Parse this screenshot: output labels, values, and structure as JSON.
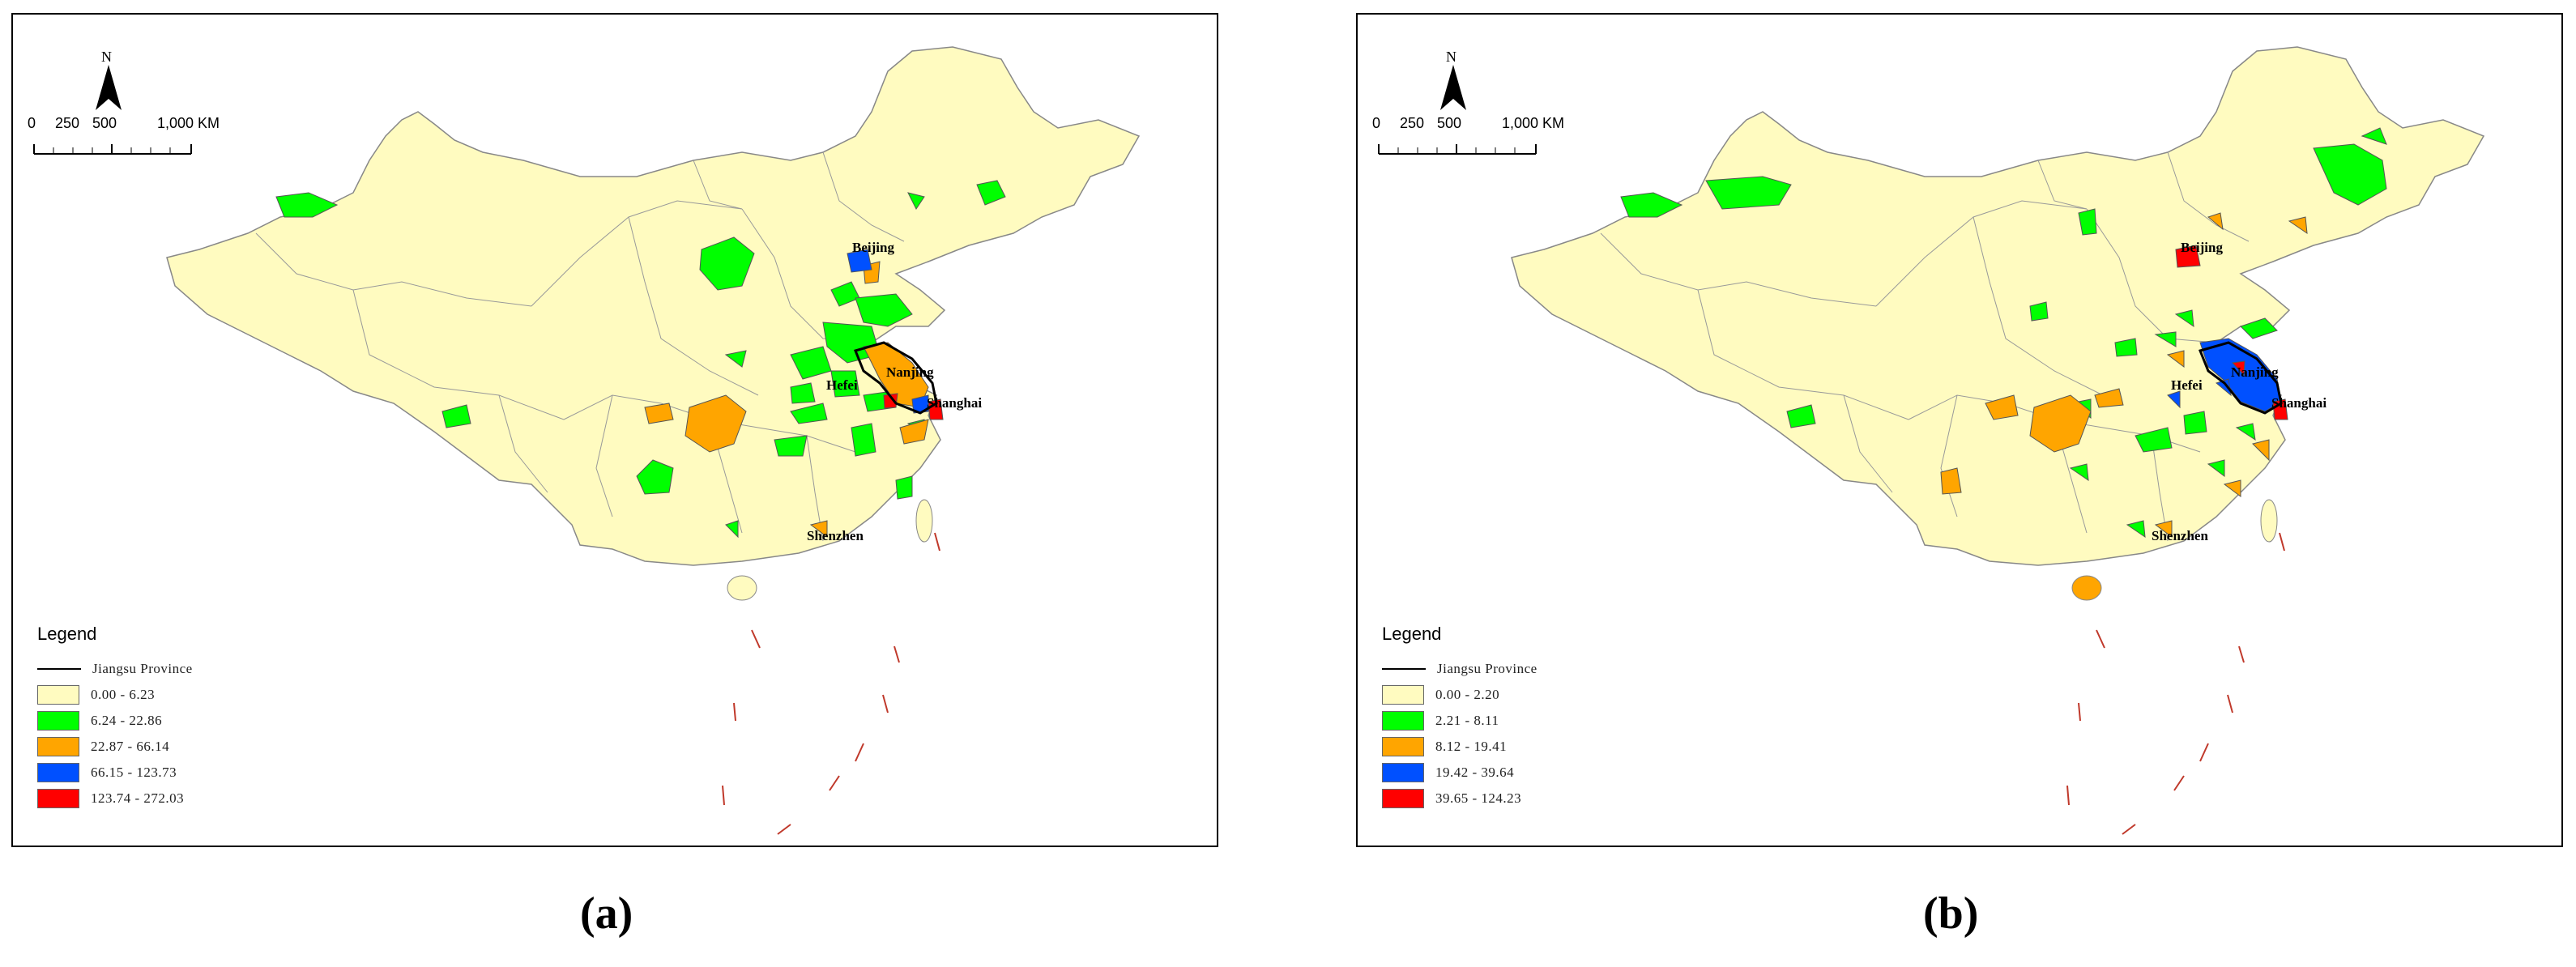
{
  "panels": [
    {
      "id": "a",
      "north_label": "N",
      "scale_labels": [
        "0",
        "250",
        "500",
        "1,000 KM"
      ],
      "cities": [
        "Beijing",
        "Nanjing",
        "Hefei",
        "Shanghai",
        "Shenzhen"
      ],
      "legend": {
        "title": "Legend",
        "boundary_label": "Jiangsu Province",
        "classes": [
          {
            "label": "0.00 - 6.23",
            "color": "#fffbc0"
          },
          {
            "label": "6.24 - 22.86",
            "color": "#00ff00"
          },
          {
            "label": "22.87 - 66.14",
            "color": "#ffa500"
          },
          {
            "label": "66.15 - 123.73",
            "color": "#0050ff"
          },
          {
            "label": "123.74 - 272.03",
            "color": "#ff0000"
          }
        ]
      },
      "caption": "(a)"
    },
    {
      "id": "b",
      "north_label": "N",
      "scale_labels": [
        "0",
        "250",
        "500",
        "1,000 KM"
      ],
      "cities": [
        "Beijing",
        "Nanjing",
        "Hefei",
        "Shanghai",
        "Shenzhen"
      ],
      "legend": {
        "title": "Legend",
        "boundary_label": "Jiangsu Province",
        "classes": [
          {
            "label": "0.00 - 2.20",
            "color": "#fffbc0"
          },
          {
            "label": "2.21 - 8.11",
            "color": "#00ff00"
          },
          {
            "label": "8.12 - 19.41",
            "color": "#ffa500"
          },
          {
            "label": "19.42 - 39.64",
            "color": "#0050ff"
          },
          {
            "label": "39.65 - 124.23",
            "color": "#ff0000"
          }
        ]
      },
      "caption": "(b)"
    }
  ]
}
